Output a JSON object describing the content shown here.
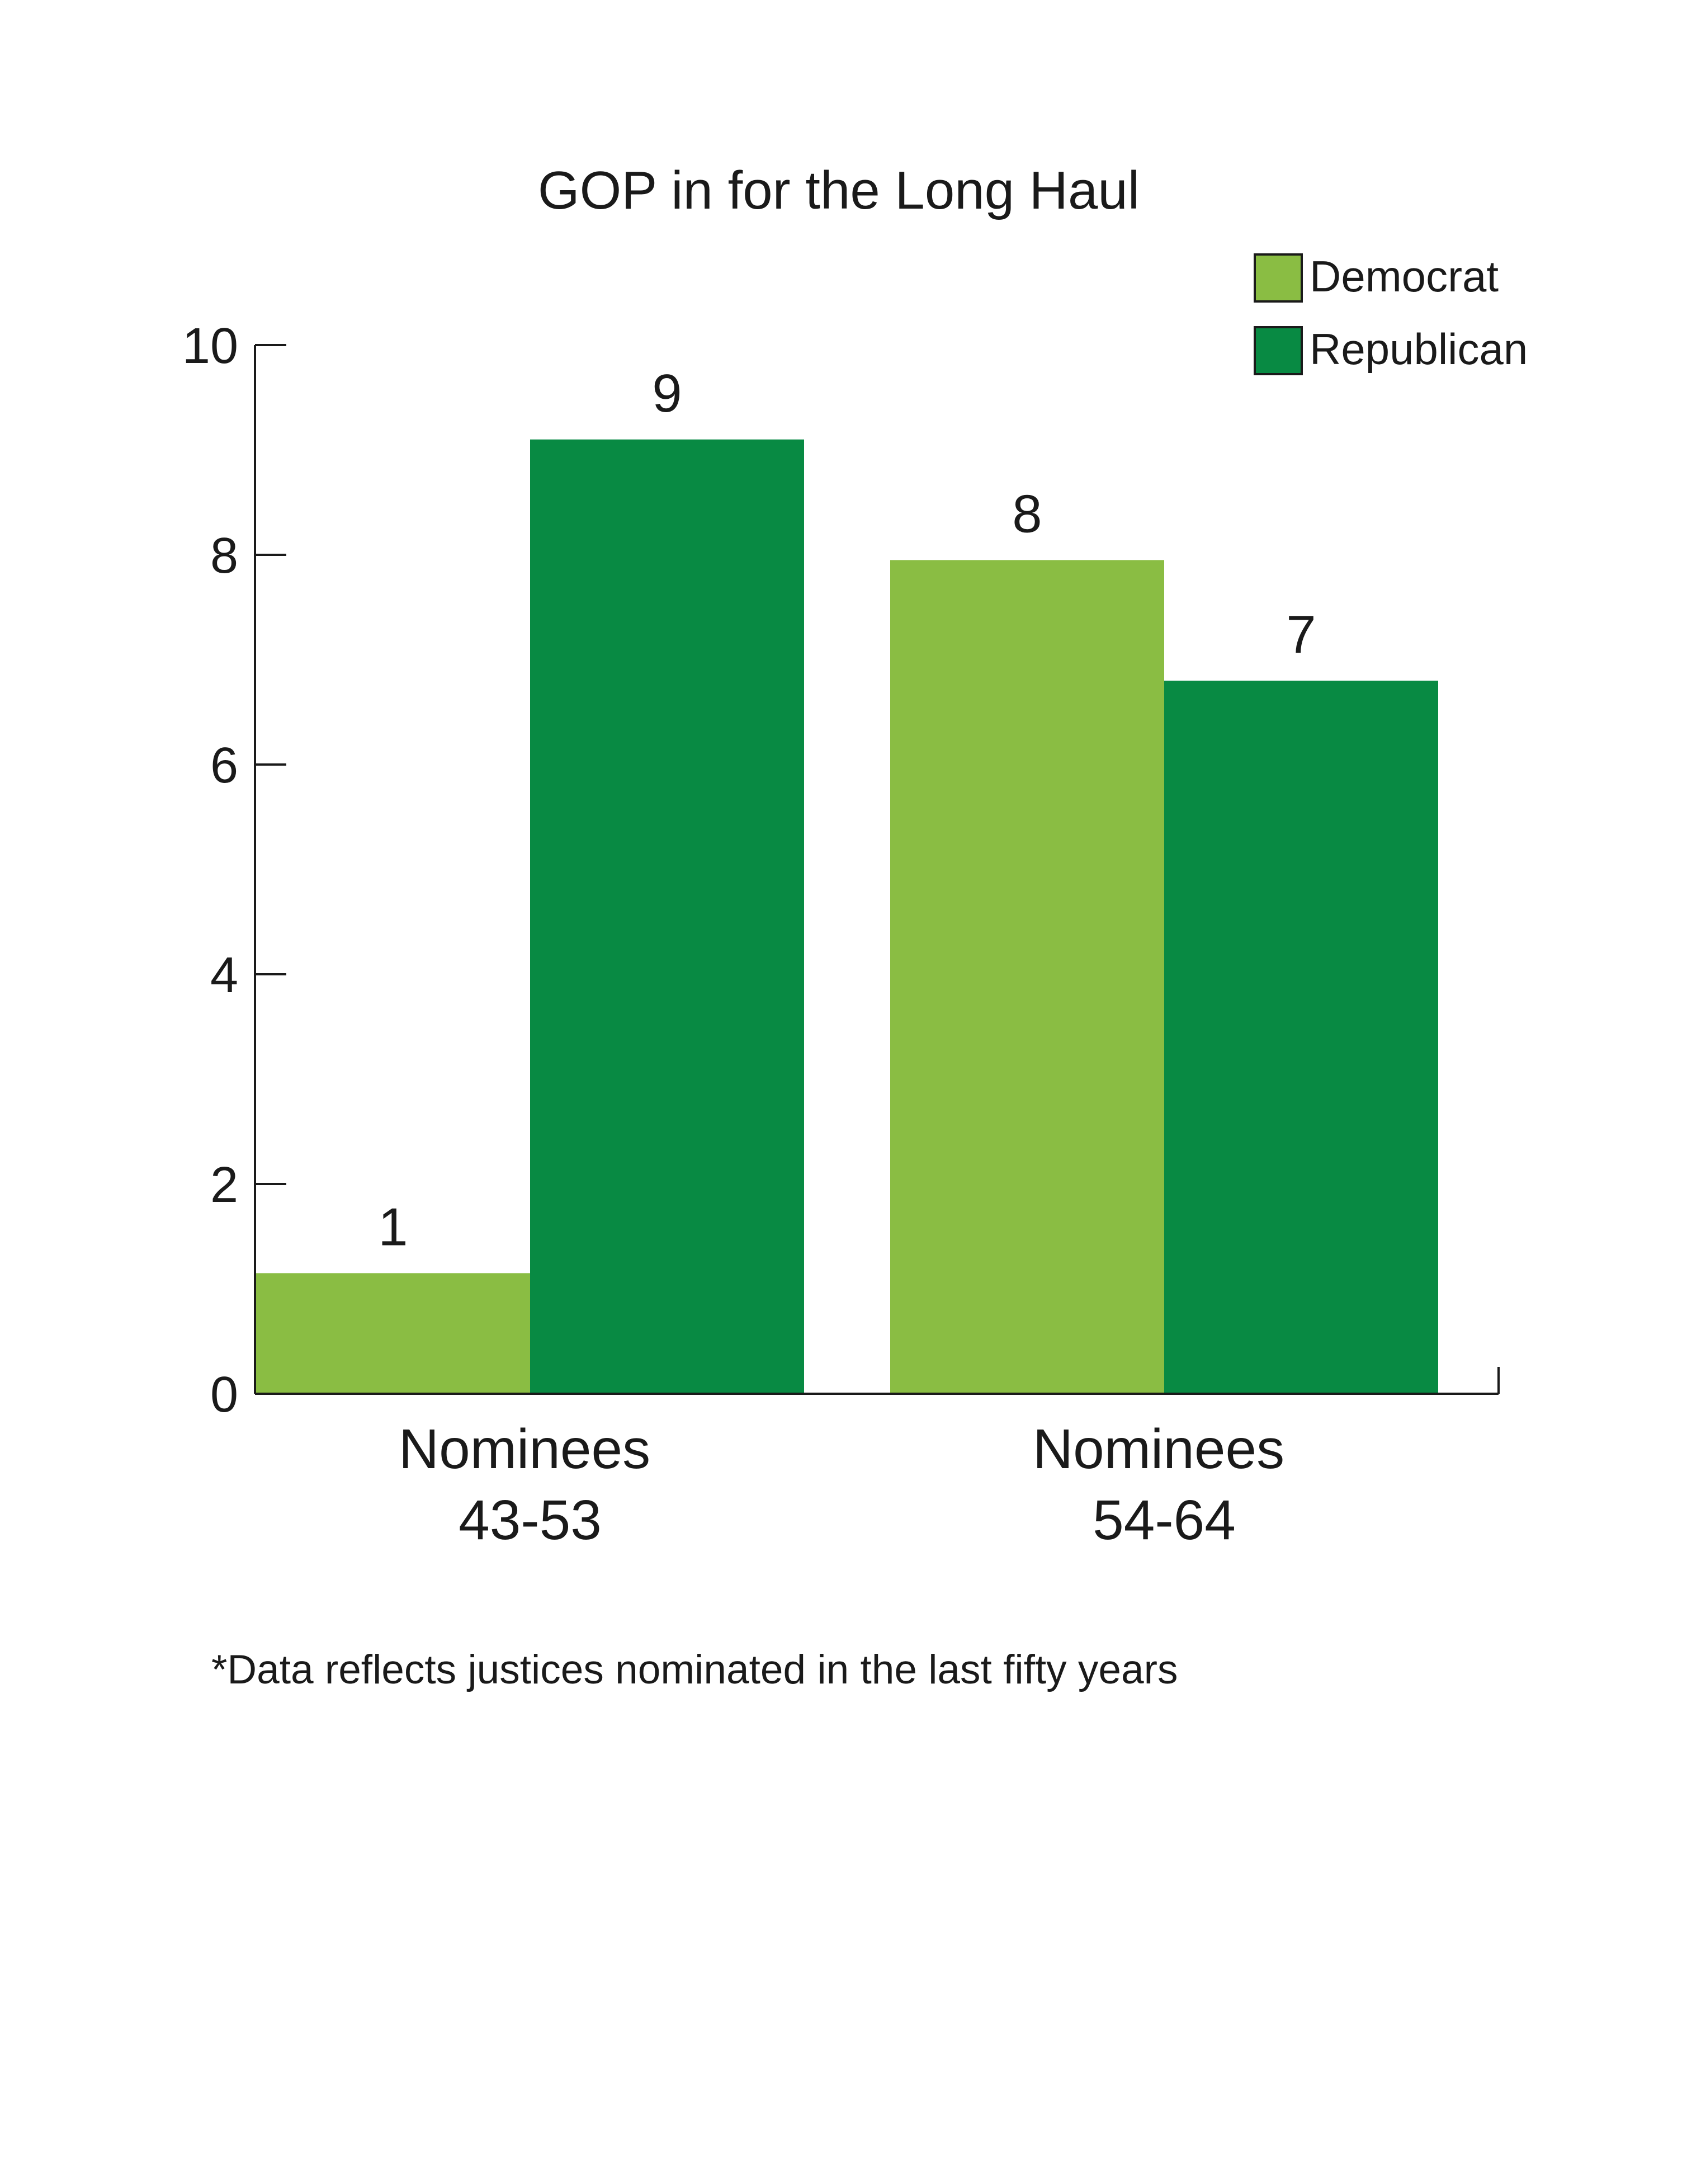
{
  "chart_data": {
    "type": "bar",
    "title": "GOP in for the Long Haul",
    "xlabel": "",
    "ylabel": "",
    "categories": [
      {
        "line1": "Nominees",
        "line2": "43-53"
      },
      {
        "line1": "Nominees",
        "line2": "54-64"
      }
    ],
    "series": [
      {
        "name": "Democrat",
        "color": "#8abd43",
        "values": [
          1.15,
          7.95
        ],
        "labels": [
          "1",
          "8"
        ]
      },
      {
        "name": "Republican",
        "color": "#088a43",
        "values": [
          9.1,
          6.8
        ],
        "labels": [
          "9",
          "7"
        ]
      }
    ],
    "ylim": [
      0,
      10
    ],
    "yticks": [
      "0",
      "2",
      "4",
      "6",
      "8",
      "10"
    ],
    "grid": false,
    "legend_position": "top-right",
    "footnote": "*Data reflects justices nominated in the last fifty years"
  }
}
